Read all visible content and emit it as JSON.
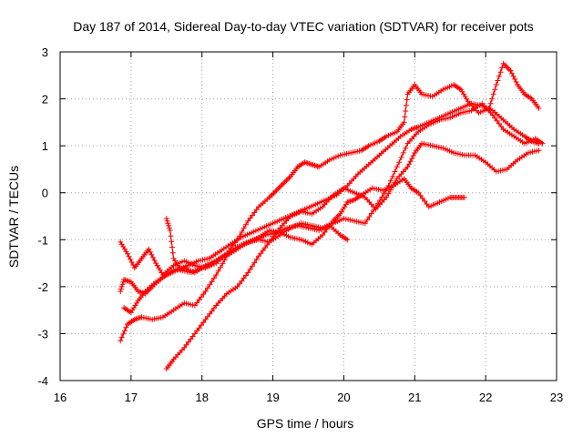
{
  "chart_data": {
    "type": "scatter",
    "title": "Day 187 of 2014, Sidereal Day-to-day VTEC variation (SDTVAR) for receiver pots",
    "xlabel": "GPS time / hours",
    "ylabel": "SDTVAR / TECUs",
    "xlim": [
      16,
      23
    ],
    "ylim": [
      -4,
      3
    ],
    "xticks": [
      "16",
      "17",
      "18",
      "19",
      "20",
      "21",
      "22",
      "23"
    ],
    "yticks": [
      "-4",
      "-3",
      "-2",
      "-1",
      "0",
      "1",
      "2",
      "3"
    ],
    "grid": true,
    "legend": "none",
    "color": "#ff0000",
    "series": [
      {
        "name": "trace-1",
        "x": [
          16.85,
          16.95,
          17.05,
          17.15,
          17.25,
          17.35,
          17.45,
          17.6,
          17.75,
          17.9,
          18.05,
          18.2,
          18.35,
          18.5,
          18.65,
          18.8,
          18.95,
          19.05,
          19.15,
          19.25,
          19.35,
          19.45,
          19.55,
          19.65,
          19.8,
          19.95,
          20.1,
          20.25,
          20.35,
          20.5,
          20.6,
          20.75,
          20.85,
          20.9,
          21.0,
          21.1,
          21.25,
          21.4,
          21.55,
          21.65,
          21.75,
          21.9,
          22.05,
          22.15,
          22.25,
          22.35,
          22.45,
          22.55,
          22.65,
          22.75
        ],
        "y": [
          -1.05,
          -1.3,
          -1.6,
          -1.4,
          -1.2,
          -1.5,
          -1.75,
          -1.55,
          -1.45,
          -1.55,
          -1.6,
          -1.5,
          -1.3,
          -1.0,
          -0.6,
          -0.3,
          -0.1,
          0.05,
          0.2,
          0.35,
          0.55,
          0.65,
          0.6,
          0.55,
          0.7,
          0.8,
          0.85,
          0.9,
          1.0,
          1.1,
          1.2,
          1.3,
          1.5,
          2.1,
          2.3,
          2.1,
          2.05,
          2.2,
          2.3,
          2.2,
          1.95,
          1.7,
          1.8,
          2.3,
          2.75,
          2.6,
          2.3,
          2.1,
          2.0,
          1.8
        ]
      },
      {
        "name": "trace-2",
        "x": [
          16.85,
          16.9,
          17.0,
          17.1,
          17.2,
          17.3,
          17.45,
          17.6,
          17.75,
          17.9,
          18.05,
          18.2,
          18.35,
          18.5,
          18.65,
          18.8,
          18.95,
          19.1,
          19.25,
          19.4,
          19.55,
          19.7,
          19.85,
          20.0,
          20.15,
          20.3,
          20.45,
          20.6,
          20.75,
          20.9,
          21.05,
          21.2,
          21.35,
          21.5,
          21.65,
          21.8,
          21.95,
          22.1,
          22.25,
          22.4,
          22.55,
          22.7,
          22.8
        ],
        "y": [
          -2.1,
          -1.85,
          -1.9,
          -2.1,
          -2.15,
          -2.0,
          -1.8,
          -1.65,
          -1.6,
          -1.7,
          -1.55,
          -1.45,
          -1.3,
          -1.15,
          -1.05,
          -1.0,
          -1.05,
          -0.9,
          -0.75,
          -0.65,
          -0.7,
          -0.75,
          -0.65,
          -0.55,
          -0.6,
          -0.65,
          -0.3,
          0.05,
          0.55,
          1.05,
          1.3,
          1.45,
          1.55,
          1.6,
          1.7,
          1.75,
          1.9,
          1.65,
          1.35,
          1.2,
          1.05,
          1.15,
          1.05
        ]
      },
      {
        "name": "trace-3",
        "x": [
          17.5,
          17.6,
          17.75,
          17.9,
          18.05,
          18.2,
          18.35,
          18.5,
          18.65,
          18.8,
          18.95,
          19.1,
          19.25,
          19.4,
          19.55,
          19.7,
          19.85,
          20.0,
          20.15,
          20.3,
          20.45,
          20.6,
          20.75,
          20.9,
          21.0,
          21.1,
          21.25,
          21.4,
          21.55,
          21.7,
          21.85,
          22.0,
          22.15,
          22.3,
          22.45,
          22.6,
          22.75
        ],
        "y": [
          -3.75,
          -3.55,
          -3.3,
          -3.0,
          -2.7,
          -2.4,
          -2.15,
          -2.0,
          -1.7,
          -1.35,
          -1.05,
          -0.75,
          -0.5,
          -0.4,
          -0.45,
          -0.3,
          -0.05,
          0.1,
          0.0,
          -0.1,
          -0.35,
          -0.1,
          0.3,
          0.55,
          0.85,
          1.05,
          1.0,
          0.95,
          0.85,
          0.8,
          0.8,
          0.65,
          0.45,
          0.5,
          0.7,
          0.85,
          0.9
        ]
      },
      {
        "name": "trace-4",
        "x": [
          16.85,
          16.95,
          17.05,
          17.15,
          17.3,
          17.45,
          17.6,
          17.75,
          17.9,
          18.05,
          18.2,
          18.35,
          18.5,
          18.65,
          18.8,
          18.95,
          19.1,
          19.25,
          19.4,
          19.55,
          19.7,
          19.85,
          19.95,
          20.05,
          20.15,
          20.25,
          20.4,
          20.55,
          20.7,
          20.85,
          20.95,
          21.05,
          21.2,
          21.35,
          21.5,
          21.6,
          21.7
        ],
        "y": [
          -3.15,
          -2.8,
          -2.7,
          -2.65,
          -2.7,
          -2.65,
          -2.5,
          -2.35,
          -2.4,
          -2.1,
          -1.75,
          -1.35,
          -1.15,
          -1.05,
          -0.95,
          -0.8,
          -0.85,
          -0.95,
          -1.0,
          -1.1,
          -0.9,
          -0.6,
          -0.45,
          -0.2,
          -0.15,
          -0.05,
          0.1,
          0.05,
          0.15,
          0.3,
          0.1,
          0.0,
          -0.3,
          -0.2,
          -0.1,
          -0.1,
          -0.1
        ]
      },
      {
        "name": "trace-5",
        "x": [
          16.9,
          17.0,
          17.1,
          17.2,
          17.35,
          17.5,
          17.65,
          17.8,
          17.95,
          18.1,
          18.25,
          18.4,
          18.55,
          18.7,
          18.85,
          19.0,
          19.15,
          19.3,
          19.45,
          19.6,
          19.75,
          19.9,
          20.05,
          20.2,
          20.35,
          20.5,
          20.65,
          20.8,
          20.95,
          21.05,
          21.2,
          21.35,
          21.5,
          21.65,
          21.8,
          21.95,
          22.1,
          22.25,
          22.4,
          22.55,
          22.65,
          22.75
        ],
        "y": [
          -2.45,
          -2.55,
          -2.3,
          -2.1,
          -1.9,
          -1.75,
          -1.65,
          -1.55,
          -1.45,
          -1.4,
          -1.25,
          -1.1,
          -0.95,
          -0.85,
          -0.75,
          -0.65,
          -0.55,
          -0.45,
          -0.35,
          -0.25,
          -0.15,
          -0.05,
          0.15,
          0.4,
          0.6,
          0.8,
          1.0,
          1.2,
          1.35,
          1.4,
          1.5,
          1.6,
          1.7,
          1.8,
          1.9,
          1.85,
          1.75,
          1.55,
          1.35,
          1.2,
          1.1,
          1.05
        ]
      },
      {
        "name": "trace-6",
        "x": [
          17.5,
          17.55,
          17.6,
          17.7,
          17.85,
          18.0,
          18.15,
          18.3,
          18.45,
          18.6,
          18.75,
          18.9,
          19.05,
          19.2,
          19.35,
          19.5,
          19.65,
          19.8,
          19.95,
          20.05
        ],
        "y": [
          -0.55,
          -0.8,
          -1.4,
          -1.65,
          -1.7,
          -1.6,
          -1.5,
          -1.35,
          -1.25,
          -1.1,
          -1.0,
          -0.9,
          -0.85,
          -0.75,
          -0.7,
          -0.75,
          -0.8,
          -0.7,
          -0.9,
          -1.0
        ]
      }
    ]
  }
}
